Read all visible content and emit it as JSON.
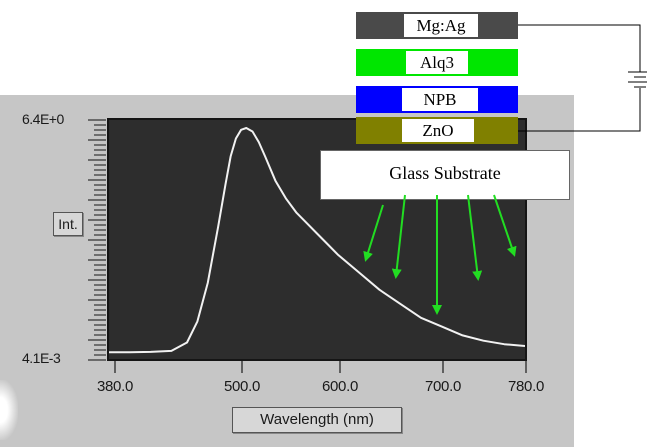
{
  "spectrum": {
    "y_axis": {
      "max_label": "6.4E+0",
      "min_label": "4.1E-3",
      "label": "Int."
    },
    "x_axis": {
      "ticks": [
        "380.0",
        "500.0",
        "600.0",
        "700.0",
        "780.0"
      ],
      "label": "Wavelength (nm)"
    },
    "chart_data": {
      "type": "line",
      "x_range": [
        380,
        780
      ],
      "y_range": [
        0.0041,
        6.4
      ],
      "series": [
        {
          "x": [
            380,
            400,
            420,
            440,
            455,
            465,
            475,
            485,
            492,
            497,
            502,
            507,
            512,
            518,
            524,
            530,
            540,
            550,
            560,
            570,
            580,
            590,
            600,
            620,
            640,
            660,
            680,
            700,
            720,
            740,
            760,
            780
          ],
          "y": [
            0.02,
            0.02,
            0.03,
            0.06,
            0.3,
            0.9,
            2.0,
            3.6,
            4.8,
            5.6,
            6.1,
            6.35,
            6.4,
            6.3,
            6.0,
            5.6,
            4.9,
            4.4,
            4.0,
            3.7,
            3.4,
            3.1,
            2.8,
            2.3,
            1.8,
            1.4,
            1.0,
            0.75,
            0.5,
            0.35,
            0.25,
            0.2
          ]
        }
      ]
    }
  },
  "device": {
    "layers": [
      {
        "name": "Mg:Ag",
        "color": "#4a4a4a"
      },
      {
        "name": "Alq3",
        "color": "#00e600"
      },
      {
        "name": "NPB",
        "color": "#0000ff"
      },
      {
        "name": "ZnO",
        "color": "#808000"
      }
    ],
    "substrate": "Glass Substrate",
    "emission_color": "#22dd22"
  }
}
